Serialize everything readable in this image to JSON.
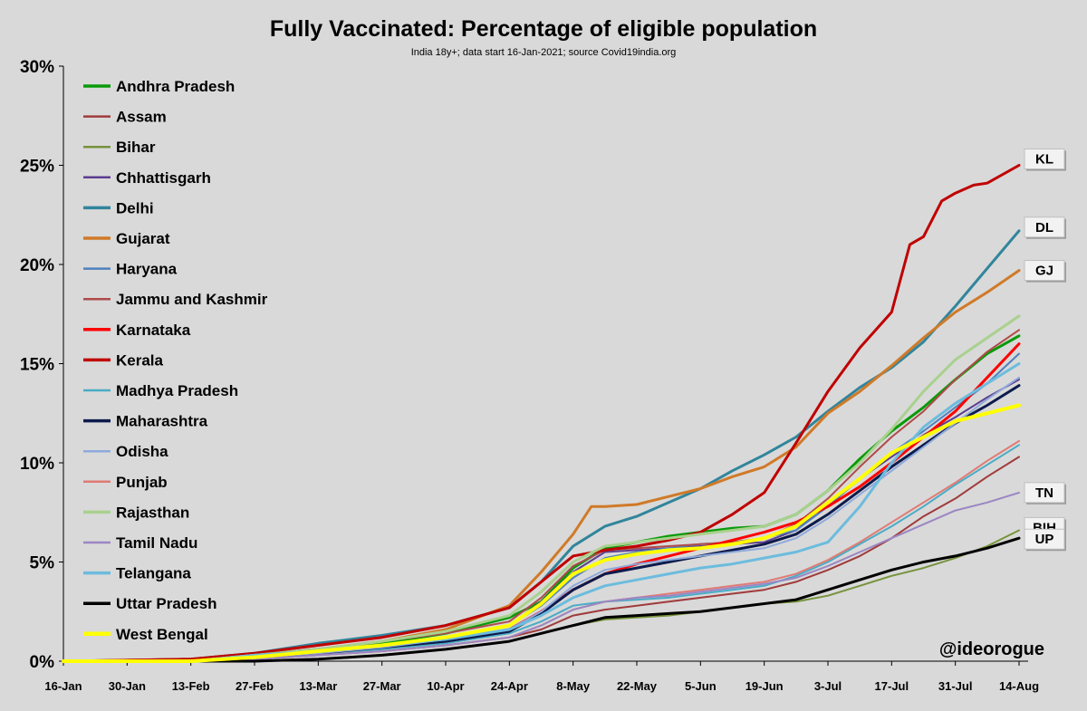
{
  "chart_data": {
    "type": "line",
    "title": "Fully Vaccinated: Percentage of eligible population",
    "subtitle": "India 18y+; data  start 16-Jan-2021; source Covid19india.org",
    "xlabel": "",
    "ylabel": "",
    "ylim": [
      0,
      30
    ],
    "ytick_values": [
      0,
      5,
      10,
      15,
      20,
      25,
      30
    ],
    "ytick_labels": [
      "0%",
      "5%",
      "10%",
      "15%",
      "20%",
      "25%",
      "30%"
    ],
    "xlim": [
      0,
      210
    ],
    "xtick_days": [
      0,
      14,
      28,
      42,
      56,
      70,
      84,
      98,
      112,
      126,
      140,
      154,
      168,
      182,
      196,
      210
    ],
    "xtick_labels": [
      "16-Jan",
      "30-Jan",
      "13-Feb",
      "27-Feb",
      "13-Mar",
      "27-Mar",
      "10-Apr",
      "24-Apr",
      "8-May",
      "22-May",
      "5-Jun",
      "19-Jun",
      "3-Jul",
      "17-Jul",
      "31-Jul",
      "14-Aug"
    ],
    "grid": false,
    "legend_position": "top-left",
    "watermark": "@ideorogue",
    "series": [
      {
        "name": "Andhra Pradesh",
        "color": "#0a9a0a",
        "width": 3,
        "x": [
          0,
          28,
          42,
          56,
          70,
          84,
          98,
          105,
          112,
          119,
          126,
          133,
          140,
          147,
          154,
          161,
          168,
          175,
          182,
          189,
          196,
          203,
          210
        ],
        "y": [
          0,
          0,
          0.3,
          0.6,
          0.9,
          1.4,
          2.2,
          3.0,
          4.7,
          5.7,
          6.0,
          6.3,
          6.5,
          6.7,
          6.8,
          7.4,
          8.6,
          10.2,
          11.6,
          12.8,
          14.2,
          15.5,
          16.4
        ]
      },
      {
        "name": "Assam",
        "color": "#a03b3b",
        "width": 2,
        "x": [
          0,
          28,
          42,
          56,
          70,
          84,
          98,
          105,
          112,
          119,
          126,
          133,
          140,
          147,
          154,
          161,
          168,
          175,
          182,
          189,
          196,
          203,
          210
        ],
        "y": [
          0,
          0,
          0.1,
          0.3,
          0.5,
          0.8,
          1.2,
          1.6,
          2.3,
          2.6,
          2.8,
          3.0,
          3.2,
          3.4,
          3.6,
          4.0,
          4.6,
          5.3,
          6.2,
          7.3,
          8.2,
          9.3,
          10.3
        ]
      },
      {
        "name": "Bihar",
        "color": "#77933c",
        "width": 2,
        "x": [
          0,
          28,
          42,
          56,
          70,
          84,
          98,
          105,
          112,
          119,
          126,
          133,
          140,
          147,
          154,
          161,
          168,
          175,
          182,
          189,
          196,
          203,
          210
        ],
        "y": [
          0,
          0,
          0,
          0.1,
          0.3,
          0.6,
          1.0,
          1.4,
          1.8,
          2.1,
          2.2,
          2.3,
          2.5,
          2.7,
          2.9,
          3.0,
          3.3,
          3.8,
          4.3,
          4.7,
          5.2,
          5.8,
          6.6
        ]
      },
      {
        "name": "Chhattisgarh",
        "color": "#5c3d8f",
        "width": 2,
        "x": [
          0,
          28,
          42,
          56,
          70,
          84,
          98,
          105,
          112,
          119,
          126,
          133,
          140,
          147,
          154,
          161,
          168,
          175,
          182,
          189,
          196,
          203,
          210
        ],
        "y": [
          0,
          0,
          0.2,
          0.5,
          0.8,
          1.2,
          1.8,
          3.0,
          4.5,
          5.5,
          5.6,
          5.7,
          5.8,
          5.9,
          6.0,
          6.6,
          8.0,
          9.2,
          10.3,
          11.4,
          12.3,
          13.3,
          14.2
        ]
      },
      {
        "name": "Delhi",
        "color": "#31859c",
        "width": 3,
        "x": [
          0,
          28,
          42,
          56,
          70,
          84,
          98,
          105,
          112,
          119,
          126,
          133,
          140,
          147,
          154,
          161,
          168,
          175,
          182,
          189,
          196,
          203,
          210
        ],
        "y": [
          0,
          0.1,
          0.4,
          0.9,
          1.3,
          1.8,
          2.7,
          4.0,
          5.8,
          6.8,
          7.3,
          8.0,
          8.7,
          9.6,
          10.4,
          11.3,
          12.6,
          13.8,
          14.8,
          16.1,
          17.9,
          19.8,
          21.7
        ]
      },
      {
        "name": "Gujarat",
        "color": "#d07a28",
        "width": 3,
        "x": [
          0,
          28,
          42,
          56,
          70,
          84,
          98,
          105,
          112,
          116,
          119,
          126,
          133,
          140,
          147,
          154,
          161,
          168,
          175,
          182,
          189,
          196,
          203,
          210
        ],
        "y": [
          0,
          0.1,
          0.3,
          0.6,
          1.0,
          1.6,
          2.8,
          4.5,
          6.4,
          7.8,
          7.8,
          7.9,
          8.3,
          8.7,
          9.3,
          9.8,
          10.8,
          12.5,
          13.6,
          14.9,
          16.3,
          17.6,
          18.6,
          19.7
        ]
      },
      {
        "name": "Haryana",
        "color": "#4f81bd",
        "width": 2,
        "x": [
          0,
          28,
          42,
          56,
          70,
          84,
          98,
          105,
          112,
          119,
          126,
          133,
          140,
          147,
          154,
          161,
          168,
          175,
          182,
          189,
          196,
          203,
          210
        ],
        "y": [
          0,
          0,
          0.2,
          0.5,
          0.8,
          1.2,
          1.8,
          2.8,
          4.2,
          5.2,
          5.5,
          5.7,
          5.9,
          6.0,
          6.2,
          6.6,
          7.8,
          9.2,
          10.5,
          11.6,
          12.8,
          14.0,
          15.5
        ]
      },
      {
        "name": "Jammu and Kashmir",
        "color": "#b04a4a",
        "width": 2,
        "x": [
          0,
          28,
          42,
          56,
          70,
          84,
          98,
          105,
          112,
          119,
          126,
          133,
          140,
          147,
          154,
          161,
          168,
          175,
          182,
          189,
          196,
          203,
          210
        ],
        "y": [
          0,
          0.1,
          0.3,
          0.6,
          1.0,
          1.4,
          2.0,
          3.2,
          4.8,
          5.6,
          5.7,
          5.8,
          5.9,
          6.0,
          6.2,
          6.9,
          8.2,
          9.8,
          11.3,
          12.6,
          14.2,
          15.6,
          16.7
        ]
      },
      {
        "name": "Karnataka",
        "color": "#ff0000",
        "width": 3,
        "x": [
          0,
          28,
          42,
          56,
          70,
          84,
          98,
          105,
          112,
          119,
          126,
          133,
          140,
          147,
          154,
          161,
          168,
          175,
          182,
          189,
          196,
          203,
          210
        ],
        "y": [
          0,
          0,
          0.2,
          0.4,
          0.7,
          1.0,
          1.6,
          2.5,
          3.6,
          4.4,
          4.9,
          5.3,
          5.7,
          6.1,
          6.5,
          7.0,
          7.8,
          8.8,
          10.0,
          11.3,
          12.6,
          14.3,
          16.0
        ]
      },
      {
        "name": "Kerala",
        "color": "#c00000",
        "width": 3,
        "x": [
          0,
          28,
          42,
          56,
          70,
          84,
          98,
          105,
          112,
          119,
          126,
          133,
          140,
          147,
          154,
          161,
          168,
          175,
          182,
          186,
          189,
          193,
          196,
          200,
          203,
          210
        ],
        "y": [
          0,
          0.1,
          0.4,
          0.8,
          1.2,
          1.8,
          2.7,
          4.0,
          5.3,
          5.6,
          5.8,
          6.1,
          6.5,
          7.4,
          8.5,
          11.0,
          13.6,
          15.8,
          17.6,
          21.0,
          21.4,
          23.2,
          23.6,
          24.0,
          24.1,
          25.0
        ]
      },
      {
        "name": "Madhya Pradesh",
        "color": "#4aacc6",
        "width": 2,
        "x": [
          0,
          28,
          42,
          56,
          70,
          84,
          98,
          105,
          112,
          119,
          126,
          133,
          140,
          147,
          154,
          161,
          168,
          175,
          182,
          189,
          196,
          203,
          210
        ],
        "y": [
          0,
          0,
          0.1,
          0.3,
          0.6,
          0.9,
          1.4,
          2.0,
          2.8,
          3.0,
          3.1,
          3.2,
          3.4,
          3.6,
          3.8,
          4.3,
          5.0,
          5.9,
          6.8,
          7.8,
          8.9,
          9.9,
          10.9
        ]
      },
      {
        "name": "Maharashtra",
        "color": "#0d1b4c",
        "width": 3,
        "x": [
          0,
          28,
          42,
          56,
          70,
          84,
          98,
          105,
          112,
          119,
          126,
          133,
          140,
          147,
          154,
          161,
          168,
          175,
          182,
          189,
          196,
          203,
          210
        ],
        "y": [
          0,
          0,
          0.2,
          0.4,
          0.7,
          1.0,
          1.5,
          2.4,
          3.6,
          4.4,
          4.7,
          5.0,
          5.3,
          5.6,
          5.9,
          6.4,
          7.4,
          8.6,
          9.8,
          10.9,
          12.0,
          12.9,
          13.9
        ]
      },
      {
        "name": "Odisha",
        "color": "#8ea9db",
        "width": 2,
        "x": [
          0,
          28,
          42,
          56,
          70,
          84,
          98,
          105,
          112,
          119,
          126,
          133,
          140,
          147,
          154,
          161,
          168,
          175,
          182,
          189,
          196,
          203,
          210
        ],
        "y": [
          0,
          0,
          0.2,
          0.4,
          0.7,
          1.1,
          1.6,
          2.5,
          3.8,
          4.6,
          4.9,
          5.1,
          5.3,
          5.5,
          5.7,
          6.2,
          7.2,
          8.4,
          9.6,
          10.8,
          12.0,
          13.2,
          14.3
        ]
      },
      {
        "name": "Punjab",
        "color": "#e07b74",
        "width": 2,
        "x": [
          0,
          28,
          42,
          56,
          70,
          84,
          98,
          105,
          112,
          119,
          126,
          133,
          140,
          147,
          154,
          161,
          168,
          175,
          182,
          189,
          196,
          203,
          210
        ],
        "y": [
          0,
          0,
          0.1,
          0.3,
          0.5,
          0.8,
          1.2,
          1.8,
          2.6,
          3.0,
          3.2,
          3.4,
          3.6,
          3.8,
          4.0,
          4.4,
          5.1,
          6.0,
          7.0,
          8.0,
          9.0,
          10.1,
          11.1
        ]
      },
      {
        "name": "Rajasthan",
        "color": "#a9d18e",
        "width": 3,
        "x": [
          0,
          28,
          42,
          56,
          70,
          84,
          98,
          105,
          112,
          119,
          126,
          133,
          140,
          147,
          154,
          161,
          168,
          175,
          182,
          189,
          196,
          203,
          210
        ],
        "y": [
          0,
          0,
          0.3,
          0.6,
          1.0,
          1.5,
          2.3,
          3.5,
          5.0,
          5.8,
          6.0,
          6.2,
          6.4,
          6.6,
          6.8,
          7.4,
          8.6,
          10.0,
          11.7,
          13.6,
          15.2,
          16.3,
          17.4
        ]
      },
      {
        "name": "Tamil Nadu",
        "color": "#9b86c3",
        "width": 2,
        "x": [
          0,
          28,
          42,
          56,
          70,
          84,
          98,
          105,
          112,
          119,
          126,
          133,
          140,
          147,
          154,
          161,
          168,
          175,
          182,
          189,
          196,
          203,
          210
        ],
        "y": [
          0,
          0,
          0.1,
          0.3,
          0.5,
          0.8,
          1.2,
          1.8,
          2.6,
          3.0,
          3.2,
          3.3,
          3.5,
          3.7,
          3.9,
          4.2,
          4.8,
          5.5,
          6.2,
          6.9,
          7.6,
          8.0,
          8.5
        ]
      },
      {
        "name": "Telangana",
        "color": "#6cbcde",
        "width": 3,
        "x": [
          0,
          28,
          42,
          56,
          70,
          84,
          98,
          105,
          112,
          119,
          126,
          133,
          140,
          147,
          154,
          161,
          168,
          175,
          182,
          189,
          196,
          203,
          210
        ],
        "y": [
          0,
          0,
          0.3,
          0.5,
          0.8,
          1.1,
          1.6,
          2.3,
          3.2,
          3.8,
          4.1,
          4.4,
          4.7,
          4.9,
          5.2,
          5.5,
          6.0,
          7.8,
          10.0,
          11.8,
          13.0,
          14.0,
          15.0
        ]
      },
      {
        "name": "Uttar Pradesh",
        "color": "#000000",
        "width": 3,
        "x": [
          0,
          28,
          42,
          56,
          70,
          84,
          98,
          105,
          112,
          119,
          126,
          133,
          140,
          147,
          154,
          161,
          168,
          175,
          182,
          189,
          196,
          203,
          210
        ],
        "y": [
          0,
          0,
          0,
          0.1,
          0.3,
          0.6,
          1.0,
          1.4,
          1.8,
          2.2,
          2.3,
          2.4,
          2.5,
          2.7,
          2.9,
          3.1,
          3.6,
          4.1,
          4.6,
          5.0,
          5.3,
          5.7,
          6.2
        ]
      },
      {
        "name": "West Bengal",
        "color": "#ffff00",
        "width": 4,
        "x": [
          0,
          28,
          42,
          56,
          70,
          84,
          98,
          105,
          112,
          119,
          126,
          133,
          140,
          147,
          154,
          161,
          168,
          175,
          182,
          189,
          196,
          203,
          210
        ],
        "y": [
          0,
          0,
          0.2,
          0.5,
          0.8,
          1.2,
          1.8,
          2.9,
          4.4,
          5.1,
          5.4,
          5.6,
          5.7,
          5.9,
          6.2,
          6.8,
          8.0,
          9.2,
          10.5,
          11.3,
          12.1,
          12.5,
          12.9
        ]
      }
    ],
    "end_labels": [
      {
        "text": "KL",
        "series": "Kerala"
      },
      {
        "text": "DL",
        "series": "Delhi"
      },
      {
        "text": "GJ",
        "series": "Gujarat"
      },
      {
        "text": "TN",
        "series": "Tamil Nadu"
      },
      {
        "text": "BIH",
        "series": "Bihar"
      },
      {
        "text": "UP",
        "series": "Uttar Pradesh"
      }
    ]
  }
}
